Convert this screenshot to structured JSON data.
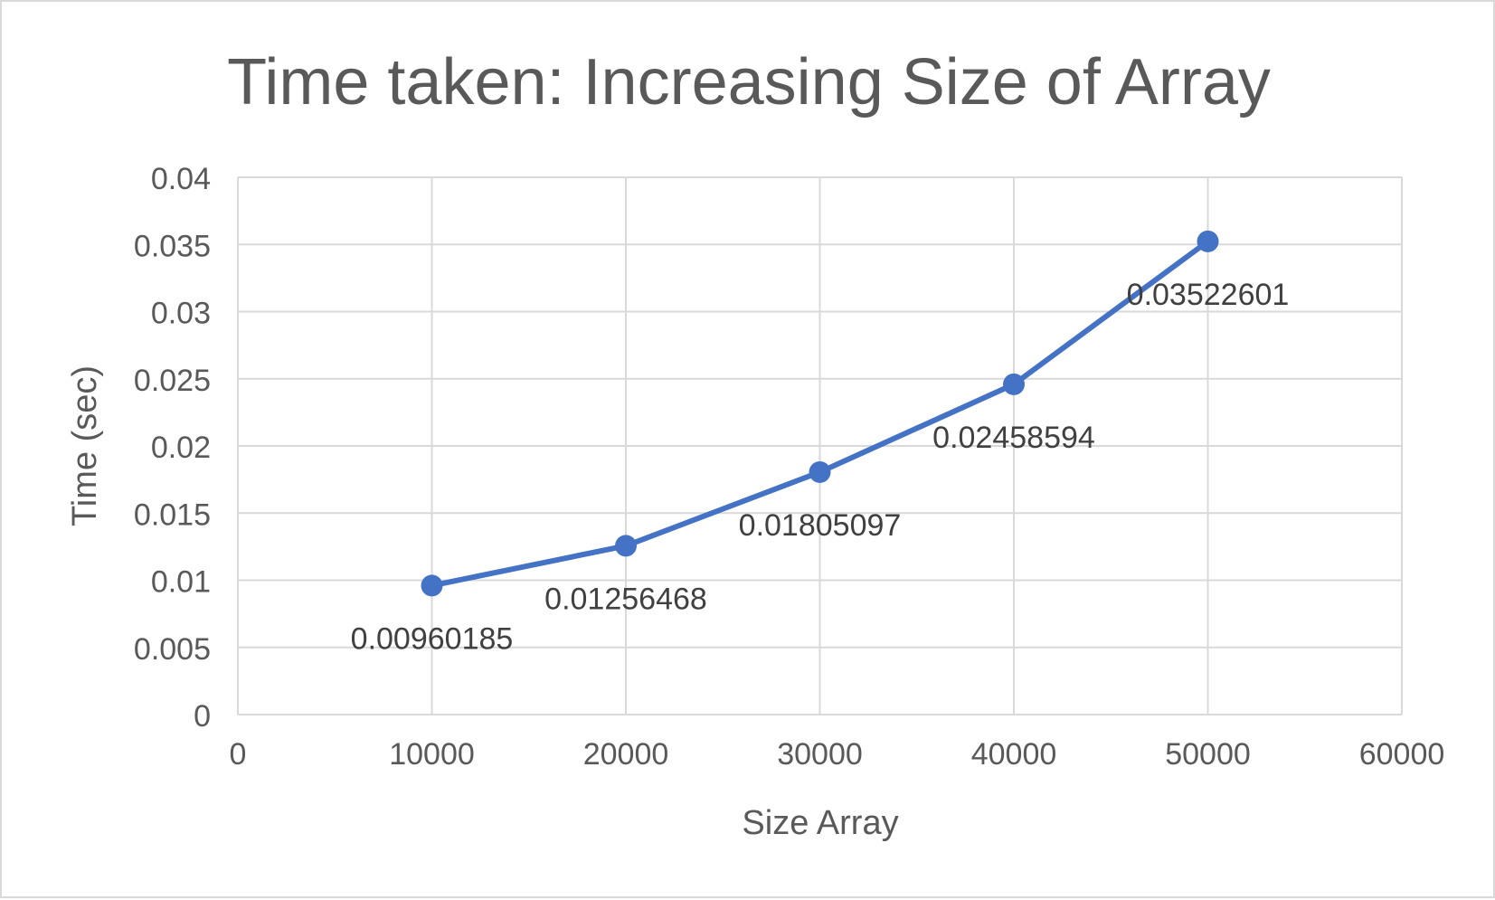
{
  "chart_data": {
    "type": "scatter",
    "title": "Time taken: Increasing Size of Array",
    "xlabel": "Size Array",
    "ylabel": "Time (sec)",
    "xlim": [
      0,
      60000
    ],
    "ylim": [
      0,
      0.04
    ],
    "x_ticks": [
      "0",
      "10000",
      "20000",
      "30000",
      "40000",
      "50000",
      "60000"
    ],
    "y_ticks": [
      "0",
      "0.005",
      "0.01",
      "0.015",
      "0.02",
      "0.025",
      "0.03",
      "0.035",
      "0.04"
    ],
    "grid": true,
    "legend": "none",
    "series": [
      {
        "color": "#4472c4",
        "x": [
          10000,
          20000,
          30000,
          40000,
          50000
        ],
        "y": [
          0.00960185,
          0.01256468,
          0.01805097,
          0.02458594,
          0.03522601
        ],
        "point_labels": [
          "0.00960185",
          "0.01256468",
          "0.01805097",
          "0.02458594",
          "0.03522601"
        ]
      }
    ]
  }
}
